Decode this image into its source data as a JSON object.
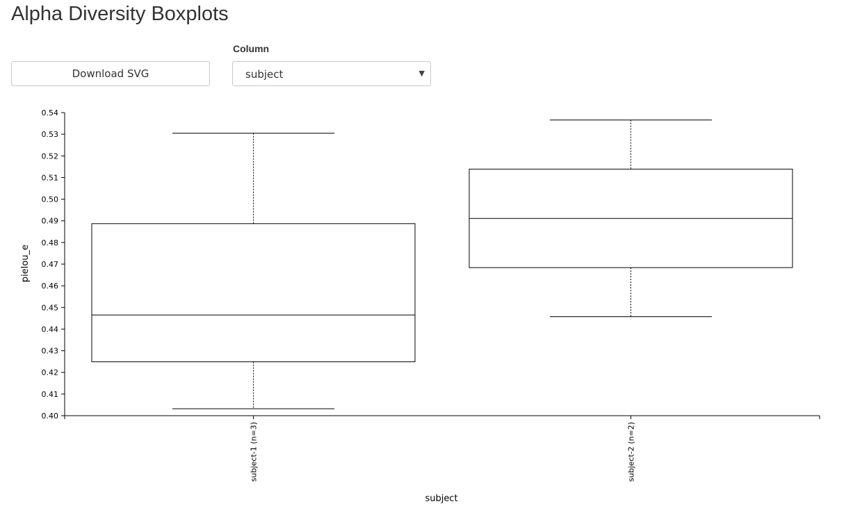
{
  "header": {
    "title": "Alpha Diversity Boxplots"
  },
  "controls": {
    "download_label": "Download SVG",
    "column_label": "Column",
    "column_selected": "subject",
    "caret_glyph": "▼",
    "caret_icon": "chevron-down-icon"
  },
  "chart_data": {
    "type": "boxplot",
    "xlabel": "subject",
    "ylabel": "pielou_e",
    "ylim": [
      0.4,
      0.54
    ],
    "yticks": [
      0.4,
      0.41,
      0.42,
      0.43,
      0.44,
      0.45,
      0.46,
      0.47,
      0.48,
      0.49,
      0.5,
      0.51,
      0.52,
      0.53,
      0.54
    ],
    "grid": false,
    "categories": [
      "subject-1 (n=3)",
      "subject-2 (n=2)"
    ],
    "boxes": [
      {
        "category": "subject-1 (n=3)",
        "min": 0.4032,
        "q1": 0.4249,
        "median": 0.4465,
        "q3": 0.4887,
        "max": 0.5305
      },
      {
        "category": "subject-2 (n=2)",
        "min": 0.4457,
        "q1": 0.4684,
        "median": 0.4911,
        "q3": 0.5139,
        "max": 0.5366
      }
    ],
    "colors": {
      "stroke": "#000000",
      "fill": "#ffffff"
    }
  }
}
